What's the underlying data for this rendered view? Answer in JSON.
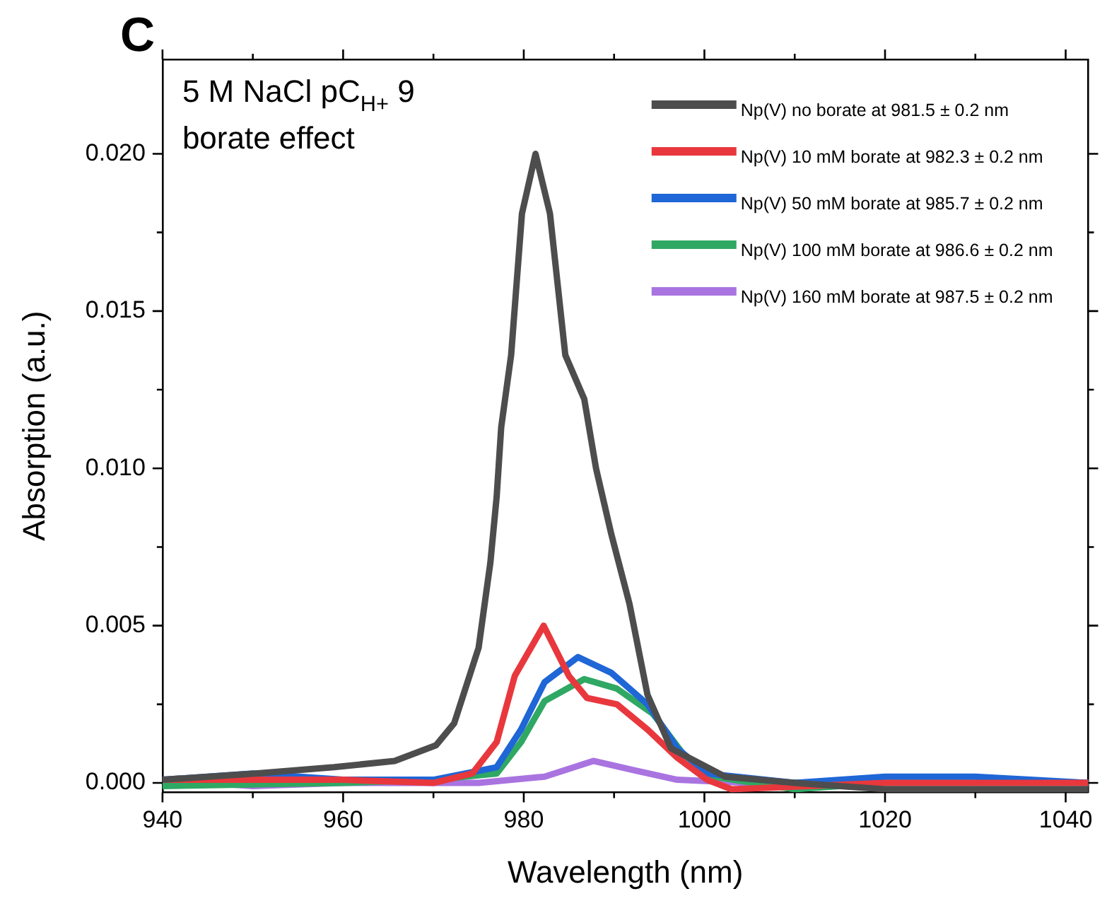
{
  "chart_data": {
    "type": "line",
    "title": "C",
    "xlabel": "Wavelength (nm)",
    "ylabel": "Absorption (a.u.)",
    "annotations": [
      "5 M NaCl pC$_{H+}$ 9",
      "borate effect"
    ],
    "xlim": [
      940,
      1042.5
    ],
    "xticks": [
      940,
      960,
      980,
      1000,
      1020,
      1040
    ],
    "ylim": [
      -0.0003,
      0.023
    ],
    "yticks": [
      {
        "value": 0,
        "label": "0.000"
      },
      {
        "value": 0.005,
        "label": "0.005"
      },
      {
        "value": 0.01,
        "label": "0.010"
      },
      {
        "value": 0.015,
        "label": "0.015"
      },
      {
        "value": 0.02,
        "label": "0.020"
      }
    ],
    "legend": "top right",
    "grid": false,
    "marker": "none",
    "line_style": "solid",
    "series": [
      {
        "name": "Np(V) no borate at 981.5 ± 0.2 nm",
        "color": "#4d4d4d",
        "x": [
          940,
          950.3,
          959,
          965.7,
          970.3,
          972.3,
          975,
          976.3,
          977,
          977.5,
          978.6,
          979.8,
          981.3,
          982.9,
          984.6,
          986.7,
          988,
          989.7,
          991.7,
          993.7,
          996.3,
          1002.3,
          1010,
          1020,
          1030,
          1042.5
        ],
        "values": [
          0.0001,
          0.0003,
          0.0005,
          0.0007,
          0.0012,
          0.0019,
          0.0043,
          0.007,
          0.0091,
          0.0113,
          0.0136,
          0.0181,
          0.02,
          0.0181,
          0.0136,
          0.0122,
          0.01,
          0.0079,
          0.0057,
          0.0028,
          0.0011,
          0.0002,
          0,
          -0.0002,
          -0.0002,
          -0.0002
        ]
      },
      {
        "name": "Np(V) 10 mM borate at 982.3 ± 0.2 nm",
        "color": "#e8383d",
        "x": [
          940,
          960,
          970,
          974.3,
          977,
          979,
          982.2,
          985,
          987,
          990.3,
          993.7,
          997,
          1000.3,
          1003,
          1020,
          1042.5
        ],
        "values": [
          0.0001,
          0.0001,
          0,
          0.0003,
          0.0013,
          0.0034,
          0.005,
          0.0034,
          0.0027,
          0.0025,
          0.0017,
          0.0008,
          0.0001,
          -0.0002,
          0,
          0
        ]
      },
      {
        "name": "Np(V) 50 mM borate at 985.7 ± 0.2 nm",
        "color": "#1f66d6",
        "x": [
          940,
          950,
          960,
          970,
          977,
          979.7,
          982.3,
          986,
          989.7,
          993.7,
          997,
          1000.3,
          1010,
          1020,
          1030,
          1042.5
        ],
        "values": [
          0.0001,
          0.0003,
          0.0001,
          0.0001,
          0.0005,
          0.0017,
          0.0032,
          0.004,
          0.0035,
          0.0025,
          0.0011,
          0.0003,
          0,
          0.0002,
          0.0002,
          0
        ]
      },
      {
        "name": "Np(V) 100 mM borate at 986.6 ± 0.2 nm",
        "color": "#2fa864",
        "x": [
          940,
          960,
          970,
          977,
          979.7,
          982.3,
          986.7,
          990.3,
          994.3,
          997.7,
          1001,
          1010,
          1020,
          1042.5
        ],
        "values": [
          -0.0001,
          0,
          0.0001,
          0.0003,
          0.0013,
          0.0026,
          0.0033,
          0.003,
          0.0022,
          0.0009,
          0.0002,
          -0.0002,
          0,
          0
        ]
      },
      {
        "name": "Np(V) 160 mM borate at 987.5 ± 0.2 nm",
        "color": "#a974e0",
        "x": [
          940,
          950,
          960,
          975,
          982.3,
          987.7,
          992.3,
          997,
          1005,
          1020,
          1042.5
        ],
        "values": [
          0.0001,
          -0.0001,
          0,
          0,
          0.0002,
          0.0007,
          0.0004,
          0.0001,
          0,
          0,
          0
        ]
      }
    ]
  }
}
